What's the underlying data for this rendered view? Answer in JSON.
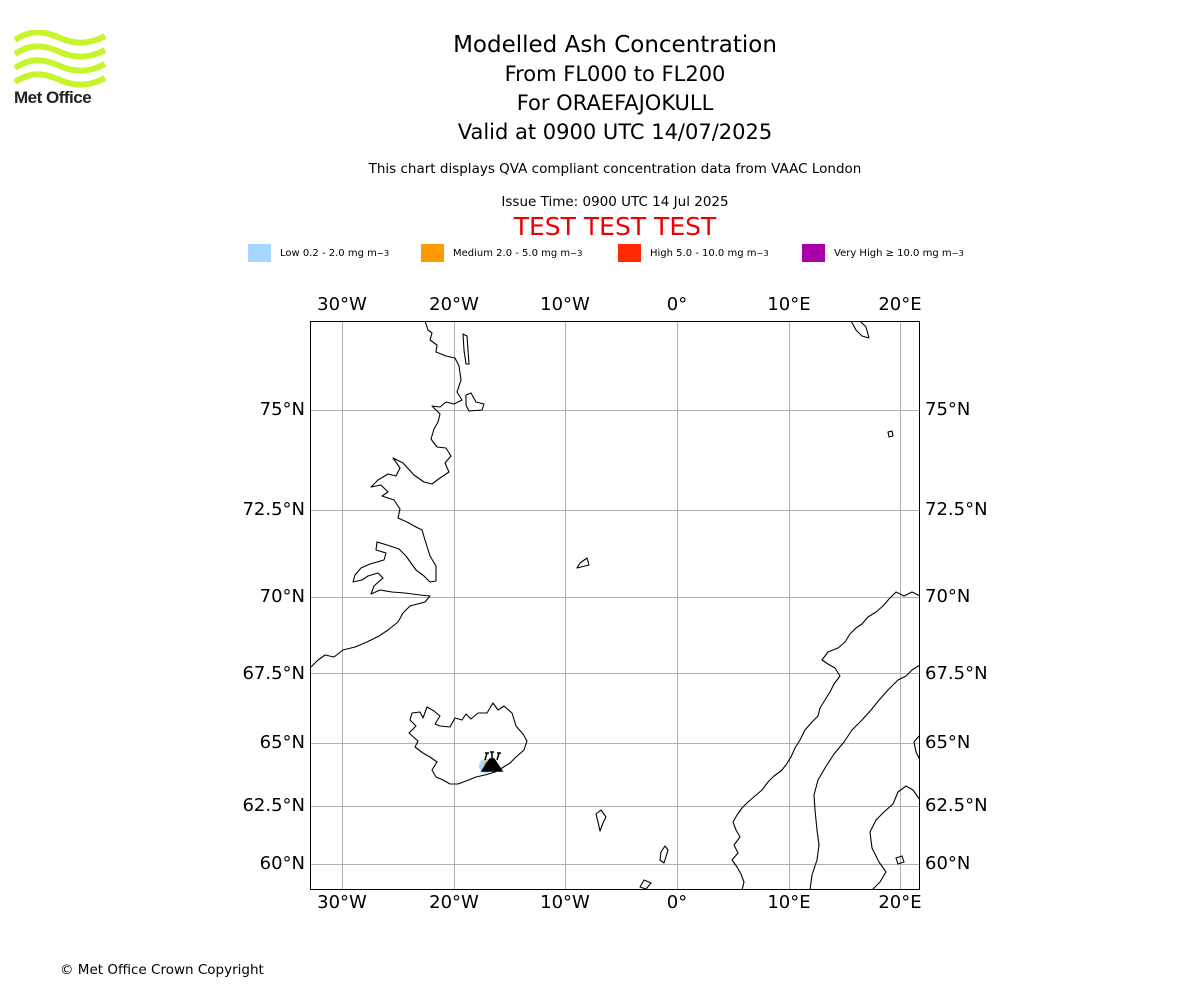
{
  "logo": {
    "text": "Met Office",
    "color": "#c6f52e"
  },
  "titles": {
    "main": "Modelled Ash Concentration",
    "levels": "From FL000 to FL200",
    "volcano": "For ORAEFAJOKULL",
    "valid": "Valid at 0900 UTC 14/07/2025",
    "subtitle": "This chart displays QVA compliant concentration data from VAAC London",
    "issue": "Issue Time: 0900 UTC 14 Jul 2025",
    "test": "TEST TEST TEST"
  },
  "legend": [
    {
      "label": "Low 0.2 - 2.0 mg m",
      "color": "#a6d5ff"
    },
    {
      "label": "Medium 2.0 - 5.0 mg m",
      "color": "#ff9900"
    },
    {
      "label": "High 5.0 - 10.0 mg m",
      "color": "#ff2a00"
    },
    {
      "label": "Very High ≥ 10.0 mg m",
      "color": "#aa00aa"
    }
  ],
  "legend_unit_exponent": "−3",
  "lon_labels": [
    "30°W",
    "20°W",
    "10°W",
    "0°",
    "10°E",
    "20°E"
  ],
  "lat_labels": [
    "75°N",
    "72.5°N",
    "70°N",
    "67.5°N",
    "65°N",
    "62.5°N",
    "60°N"
  ],
  "copyright": "© Met Office Crown Copyright"
}
